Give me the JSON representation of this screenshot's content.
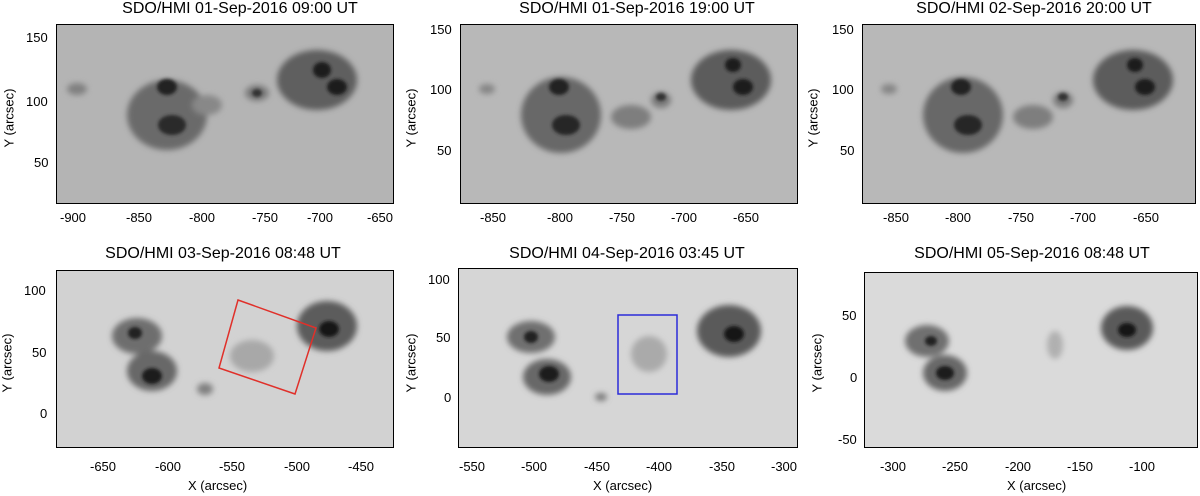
{
  "panels": [
    {
      "title": "SDO/HMI 01-Sep-2016 09:00 UT",
      "bg": "#b4b4b4",
      "xticks": [
        "-900",
        "-850",
        "-800",
        "-750",
        "-700",
        "-650"
      ],
      "yticks": [
        "150",
        "100",
        "50"
      ],
      "ylabel": "Y (arcsec)",
      "xlabel": "",
      "box": null
    },
    {
      "title": "SDO/HMI 01-Sep-2016 19:00 UT",
      "bg": "#b8b8b8",
      "xticks": [
        "-850",
        "-800",
        "-750",
        "-700",
        "-650"
      ],
      "yticks": [
        "150",
        "100",
        "50"
      ],
      "ylabel": "Y (arcsec)",
      "xlabel": "",
      "box": null
    },
    {
      "title": "SDO/HMI 02-Sep-2016 20:00 UT",
      "bg": "#b8b8b8",
      "xticks": [
        "-850",
        "-800",
        "-750",
        "-700",
        "-650"
      ],
      "yticks": [
        "150",
        "100",
        "50"
      ],
      "ylabel": "Y (arcsec)",
      "xlabel": "",
      "box": null
    },
    {
      "title": "SDO/HMI 03-Sep-2016 08:48 UT",
      "bg": "#d2d2d2",
      "xticks": [
        "-650",
        "-600",
        "-550",
        "-500",
        "-450"
      ],
      "yticks": [
        "100",
        "50",
        "0"
      ],
      "ylabel": "Y (arcsec)",
      "xlabel": "X (arcsec)",
      "box": {
        "color": "#e0302a",
        "shape": "rotated"
      }
    },
    {
      "title": "SDO/HMI 04-Sep-2016 03:45 UT",
      "bg": "#d6d6d6",
      "xticks": [
        "-550",
        "-500",
        "-450",
        "-400",
        "-350",
        "-300"
      ],
      "yticks": [
        "100",
        "50",
        "0"
      ],
      "ylabel": "Y (arcsec)",
      "xlabel": "X (arcsec)",
      "box": {
        "color": "#2b2bd8",
        "shape": "upright"
      }
    },
    {
      "title": "SDO/HMI 05-Sep-2016 08:48 UT",
      "bg": "#dadada",
      "xticks": [
        "-300",
        "-250",
        "-200",
        "-150",
        "-100"
      ],
      "yticks": [
        "50",
        "0",
        "-50"
      ],
      "ylabel": "Y (arcsec)",
      "xlabel": "X (arcsec)",
      "box": null
    }
  ]
}
